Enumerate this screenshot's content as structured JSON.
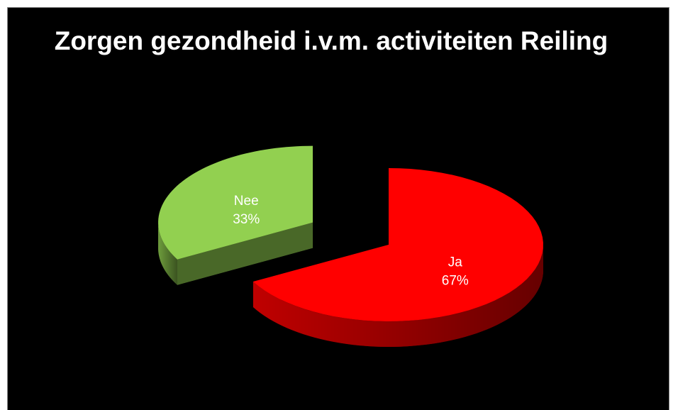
{
  "chart_data": {
    "type": "pie",
    "title": "Zorgen gezondheid i.v.m. activiteiten Reiling",
    "categories": [
      "Nee",
      "Ja"
    ],
    "values": [
      33,
      67
    ],
    "value_labels": [
      "33%",
      "67%"
    ],
    "colors": [
      "#92d050",
      "#ff0000"
    ],
    "exploded": [
      true,
      false
    ]
  }
}
